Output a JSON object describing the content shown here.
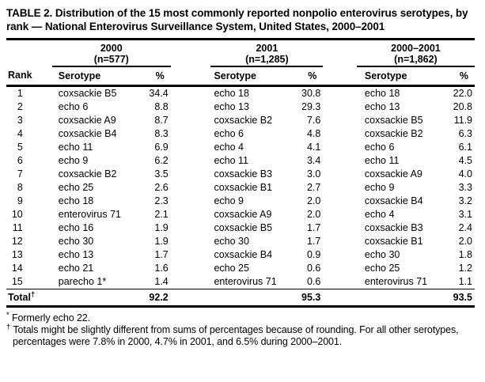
{
  "colors": {
    "text": "#000000",
    "background": "#ffffff",
    "rule": "#000000"
  },
  "title": "TABLE 2. Distribution of the 15 most commonly reported nonpolio enterovirus serotypes, by rank — National Enterovirus Surveillance System, United States, 2000–2001",
  "table": {
    "rank_header": "Rank",
    "groups": [
      {
        "year": "2000",
        "n": "(n=577)",
        "serotype_header": "Serotype",
        "pct_header": "%"
      },
      {
        "year": "2001",
        "n": "(n=1,285)",
        "serotype_header": "Serotype",
        "pct_header": "%"
      },
      {
        "year": "2000–2001",
        "n": "(n=1,862)",
        "serotype_header": "Serotype",
        "pct_header": "%"
      }
    ],
    "rows": [
      {
        "rank": "1",
        "s1": "coxsackie B5",
        "p1": "34.4",
        "s2": "echo 18",
        "p2": "30.8",
        "s3": "echo 18",
        "p3": "22.0"
      },
      {
        "rank": "2",
        "s1": "echo 6",
        "p1": "8.8",
        "s2": "echo 13",
        "p2": "29.3",
        "s3": "echo 13",
        "p3": "20.8"
      },
      {
        "rank": "3",
        "s1": "coxsackie A9",
        "p1": "8.7",
        "s2": "coxsackie B2",
        "p2": "7.6",
        "s3": "coxsackie B5",
        "p3": "11.9"
      },
      {
        "rank": "4",
        "s1": "coxsackie B4",
        "p1": "8.3",
        "s2": "echo 6",
        "p2": "4.8",
        "s3": "coxsackie B2",
        "p3": "6.3"
      },
      {
        "rank": "5",
        "s1": "echo 11",
        "p1": "6.9",
        "s2": "echo 4",
        "p2": "4.1",
        "s3": "echo 6",
        "p3": "6.1"
      },
      {
        "rank": "6",
        "s1": "echo 9",
        "p1": "6.2",
        "s2": "echo 11",
        "p2": "3.4",
        "s3": "echo 11",
        "p3": "4.5"
      },
      {
        "rank": "7",
        "s1": "coxsackie B2",
        "p1": "3.5",
        "s2": "coxsackie B3",
        "p2": "3.0",
        "s3": "coxsackie A9",
        "p3": "4.0"
      },
      {
        "rank": "8",
        "s1": "echo 25",
        "p1": "2.6",
        "s2": "coxsackie B1",
        "p2": "2.7",
        "s3": "echo 9",
        "p3": "3.3"
      },
      {
        "rank": "9",
        "s1": "echo 18",
        "p1": "2.3",
        "s2": "echo 9",
        "p2": "2.0",
        "s3": "coxsackie B4",
        "p3": "3.2"
      },
      {
        "rank": "10",
        "s1": "enterovirus 71",
        "p1": "2.1",
        "s2": "coxsackie A9",
        "p2": "2.0",
        "s3": "echo 4",
        "p3": "3.1"
      },
      {
        "rank": "11",
        "s1": "echo 16",
        "p1": "1.9",
        "s2": "coxsackie B5",
        "p2": "1.7",
        "s3": "coxsackie B3",
        "p3": "2.4"
      },
      {
        "rank": "12",
        "s1": "echo 30",
        "p1": "1.9",
        "s2": "echo 30",
        "p2": "1.7",
        "s3": "coxsackie B1",
        "p3": "2.0"
      },
      {
        "rank": "13",
        "s1": "echo 13",
        "p1": "1.7",
        "s2": "coxsackie B4",
        "p2": "0.9",
        "s3": "echo 30",
        "p3": "1.8"
      },
      {
        "rank": "14",
        "s1": "echo 21",
        "p1": "1.6",
        "s2": "echo 25",
        "p2": "0.6",
        "s3": "echo 25",
        "p3": "1.2"
      },
      {
        "rank": "15",
        "s1": "parecho 1*",
        "p1": "1.4",
        "s2": "enterovirus 71",
        "p2": "0.6",
        "s3": "enterovirus 71",
        "p3": "1.1"
      }
    ],
    "total": {
      "label": "Total",
      "marker": "†",
      "p1": "92.2",
      "p2": "95.3",
      "p3": "93.5"
    }
  },
  "footnotes": [
    {
      "marker": "*",
      "text": " Formerly echo 22."
    },
    {
      "marker": "†",
      "text": " Totals might be slightly different from sums of percentages because of rounding. For all other serotypes, percentages were 7.8% in 2000, 4.7% in 2001, and 6.5% during 2000–2001."
    }
  ]
}
